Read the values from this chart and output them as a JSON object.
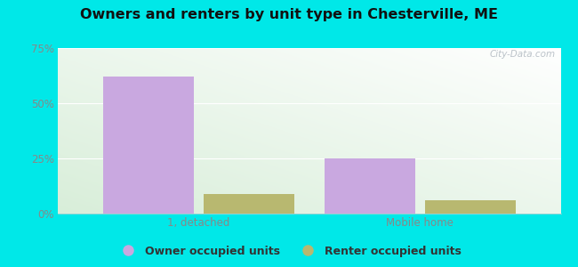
{
  "title": "Owners and renters by unit type in Chesterville, ME",
  "categories": [
    "1, detached",
    "Mobile home"
  ],
  "owner_values": [
    62,
    25
  ],
  "renter_values": [
    9,
    6
  ],
  "owner_color": "#c9a8e0",
  "renter_color": "#b8b870",
  "ylim": [
    0,
    75
  ],
  "yticks": [
    0,
    25,
    50,
    75
  ],
  "yticklabels": [
    "0%",
    "25%",
    "50%",
    "75%"
  ],
  "bar_width": 0.18,
  "background_color": "#00e8e8",
  "watermark": "City-Data.com",
  "legend_owner": "Owner occupied units",
  "legend_renter": "Renter occupied units",
  "grid_color": "#dddddd",
  "tick_color": "#888888",
  "title_fontsize": 11.5
}
